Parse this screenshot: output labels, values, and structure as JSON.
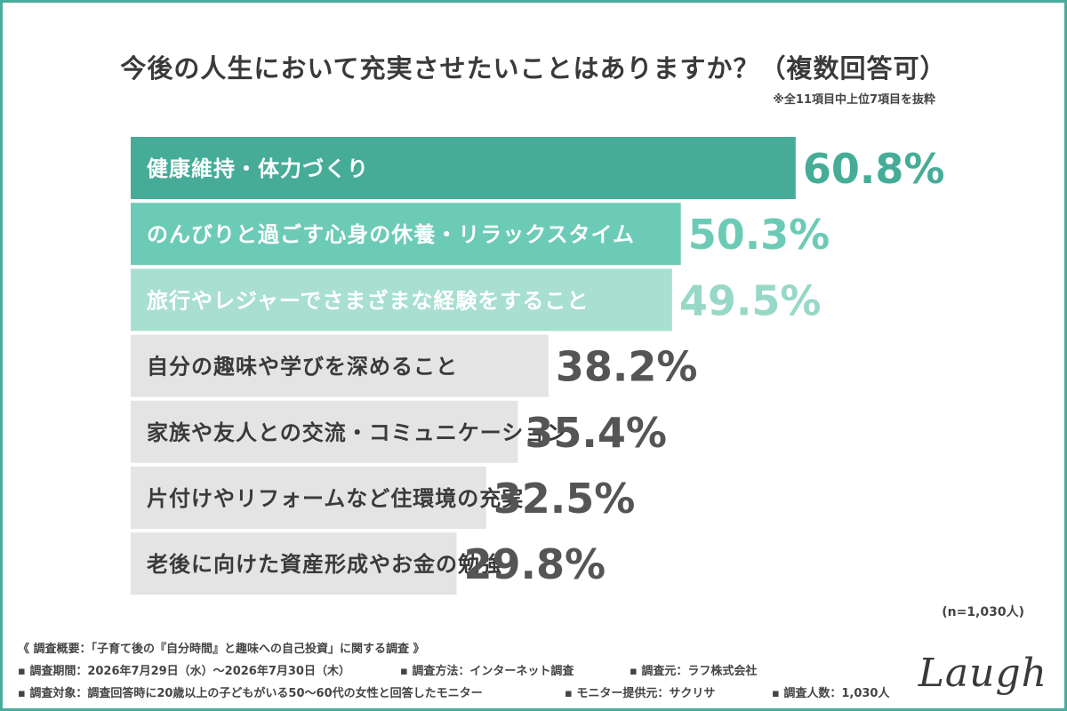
{
  "title": "今後の人生において充実させたいことはありますか？（複数回答可）",
  "note": "※全11項目中上位7項目を抜粋",
  "sample_size": "(n=1,030人)",
  "logo": "Laugh",
  "colors": {
    "frame": "#4aab9c",
    "bar_1": "#46ac98",
    "bar_2": "#6ccbb6",
    "bar_3": "#a8dfd1",
    "bar_gray": "#e4e4e4",
    "value_1": "#46ac98",
    "value_2": "#6ccbb6",
    "value_3": "#97d8c8",
    "value_gray": "#555555",
    "label_light": "#ffffff",
    "label_dark": "#3a3a3a"
  },
  "chart_data": {
    "type": "bar",
    "orientation": "horizontal",
    "categories": [
      "健康維持・体力づくり",
      "のんびりと過ごす心身の休養・リラックスタイム",
      "旅行やレジャーでさまざまな経験をすること",
      "自分の趣味や学びを深めること",
      "家族や友人との交流・コミュニケーション",
      "片付けやリフォームなど住環境の充実",
      "老後に向けた資産形成やお金の勉強"
    ],
    "values": [
      60.8,
      50.3,
      49.5,
      38.2,
      35.4,
      32.5,
      29.8
    ],
    "value_labels": [
      "60.8%",
      "50.3%",
      "49.5%",
      "38.2%",
      "35.4%",
      "32.5%",
      "29.8%"
    ],
    "unit": "%",
    "xlim": [
      0,
      100
    ],
    "title": "今後の人生において充実させたいことはありますか？（複数回答可）",
    "grid": false,
    "legend": "none"
  },
  "footer": {
    "summary": "《 調査概要：「子育て後の『自分時間』と趣味への自己投資」に関する調査 》",
    "row1": [
      "▪ 調査期間：2026年7月29日（水）〜2026年7月30日（木）",
      "▪ 調査方法：インターネット調査",
      "▪ 調査元：ラフ株式会社"
    ],
    "row2": [
      "▪ 調査対象：調査回答時に20歳以上の子どもがいる50〜60代の女性と回答したモニター",
      "▪ モニター提供元：サクリサ",
      "▪ 調査人数：1,030人"
    ]
  }
}
